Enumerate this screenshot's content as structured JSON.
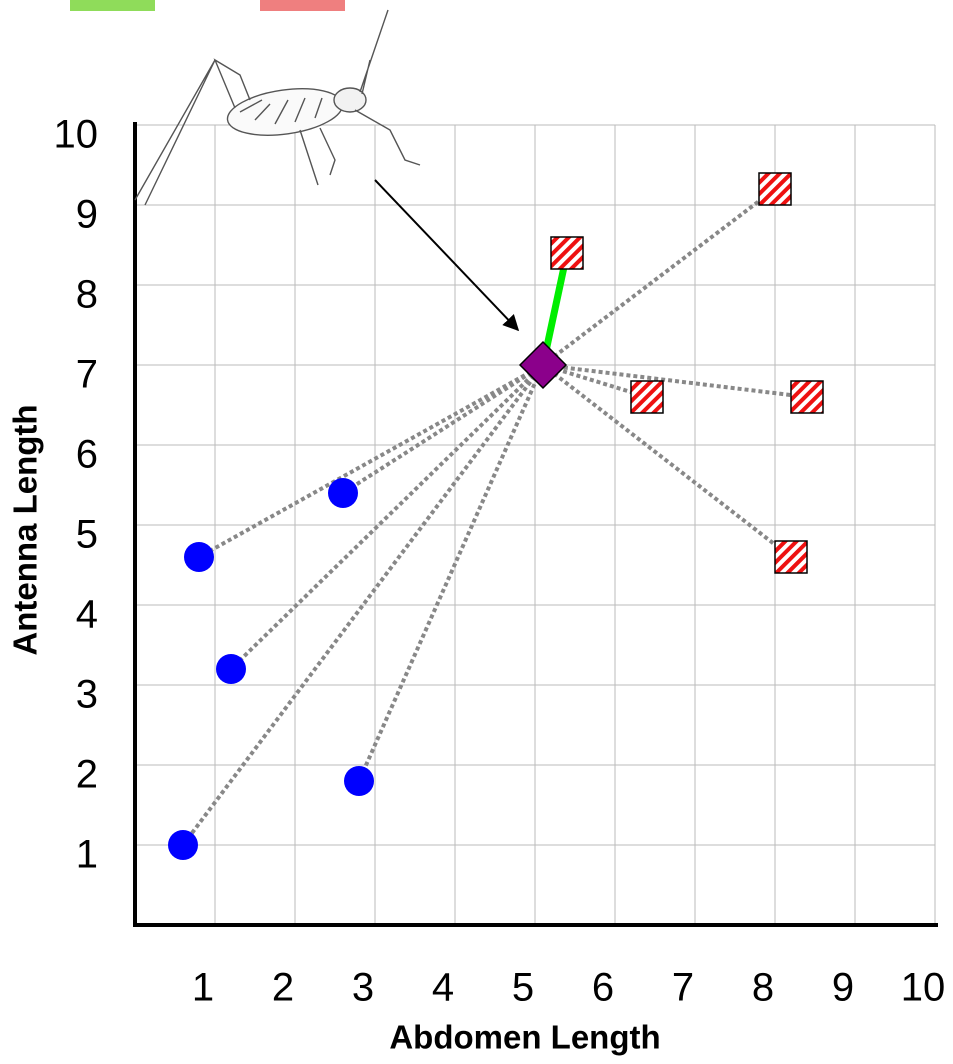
{
  "chart_data": {
    "type": "scatter",
    "x_label": "Abdomen Length",
    "y_label": "Antenna Length",
    "xlim": [
      0,
      10
    ],
    "ylim": [
      0,
      10
    ],
    "xticks": [
      1,
      2,
      3,
      4,
      5,
      6,
      7,
      8,
      9,
      10
    ],
    "yticks": [
      1,
      2,
      3,
      4,
      5,
      6,
      7,
      8,
      9,
      10
    ],
    "grid": true,
    "series": [
      {
        "marker": "circle",
        "color": "#0000ff",
        "x": [
          0.8,
          2.6,
          1.2,
          0.6,
          2.8
        ],
        "values": [
          4.6,
          5.4,
          3.2,
          1.0,
          1.8
        ]
      },
      {
        "marker": "hatched-square",
        "color": "#ee1111",
        "x": [
          5.4,
          8.0,
          6.4,
          8.4,
          8.2
        ],
        "values": [
          8.4,
          9.2,
          6.6,
          6.6,
          4.6
        ]
      },
      {
        "marker": "diamond",
        "color": "#8b008b",
        "x": [
          5.1
        ],
        "values": [
          7.0
        ]
      }
    ],
    "link_color": "#888888",
    "nearest_color": "#00ee00",
    "nearest": {
      "series": 1,
      "index": 0
    }
  }
}
